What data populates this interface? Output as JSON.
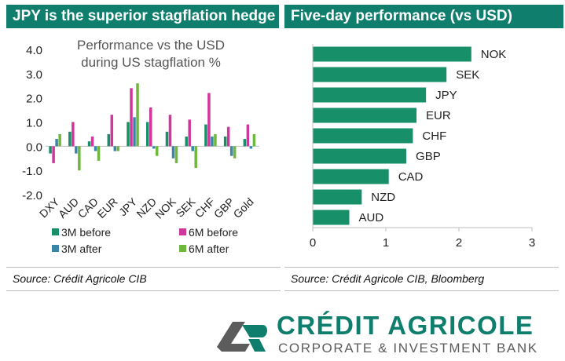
{
  "left_panel": {
    "header": "JPY is the superior stagflation hedge",
    "source": "Source: Crédit Agricole CIB"
  },
  "right_panel": {
    "header": "Five-day performance (vs USD)",
    "source": "Source: Crédit Agricole CIB, Bloomberg"
  },
  "logo": {
    "name": "CRÉDIT AGRICOLE",
    "subtitle": "CORPORATE & INVESTMENT BANK",
    "text_logo_mark": "CA"
  },
  "colors": {
    "header_bg": "#0f7e6d",
    "green_dark": "#17906a",
    "magenta": "#d0379b",
    "teal_blue": "#3a86a8",
    "light_green": "#6db83d",
    "bar_green": "#17906a"
  },
  "chart_data": [
    {
      "type": "bar",
      "title": "Performance vs the USD during US stagflation %",
      "title_lines": [
        "Performance vs the USD",
        "during US stagflation %"
      ],
      "categories": [
        "DXY",
        "AUD",
        "CAD",
        "EUR",
        "JPY",
        "NZD",
        "NOK",
        "SEK",
        "CHF",
        "GBP",
        "Gold"
      ],
      "series": [
        {
          "name": "3M before",
          "color": "#17906a",
          "values": [
            -0.3,
            0.6,
            0.2,
            0.5,
            1.0,
            1.0,
            0.6,
            0.4,
            0.9,
            0.4,
            0.3
          ]
        },
        {
          "name": "6M before",
          "color": "#d0379b",
          "values": [
            -0.7,
            1.0,
            0.4,
            1.3,
            2.4,
            1.6,
            1.3,
            1.1,
            2.2,
            0.8,
            0.9
          ]
        },
        {
          "name": "3M after",
          "color": "#3a86a8",
          "values": [
            0.3,
            -0.3,
            -0.2,
            -0.2,
            1.2,
            -0.1,
            -0.5,
            -0.2,
            0.4,
            -0.4,
            -0.1
          ]
        },
        {
          "name": "6M after",
          "color": "#6db83d",
          "values": [
            0.5,
            -1.0,
            -0.6,
            -0.2,
            2.6,
            -0.4,
            -0.7,
            -0.9,
            0.5,
            -0.5,
            0.5
          ]
        }
      ],
      "y_ticks": [
        "4.0",
        "3.0",
        "2.0",
        "1.0",
        "0.0",
        "-1.0",
        "-2.0"
      ],
      "ylim": [
        -2,
        4
      ],
      "legend_position": "bottom",
      "grid": false
    },
    {
      "type": "bar",
      "orientation": "horizontal",
      "title": "Five-day performance (vs USD)",
      "categories": [
        "NOK",
        "SEK",
        "JPY",
        "EUR",
        "CHF",
        "GBP",
        "CAD",
        "NZD",
        "AUD"
      ],
      "values": [
        2.17,
        1.83,
        1.55,
        1.42,
        1.37,
        1.28,
        1.04,
        0.67,
        0.5
      ],
      "x_ticks": [
        "0",
        "1",
        "2",
        "3"
      ],
      "xlim": [
        0,
        3
      ],
      "grid": false
    }
  ]
}
